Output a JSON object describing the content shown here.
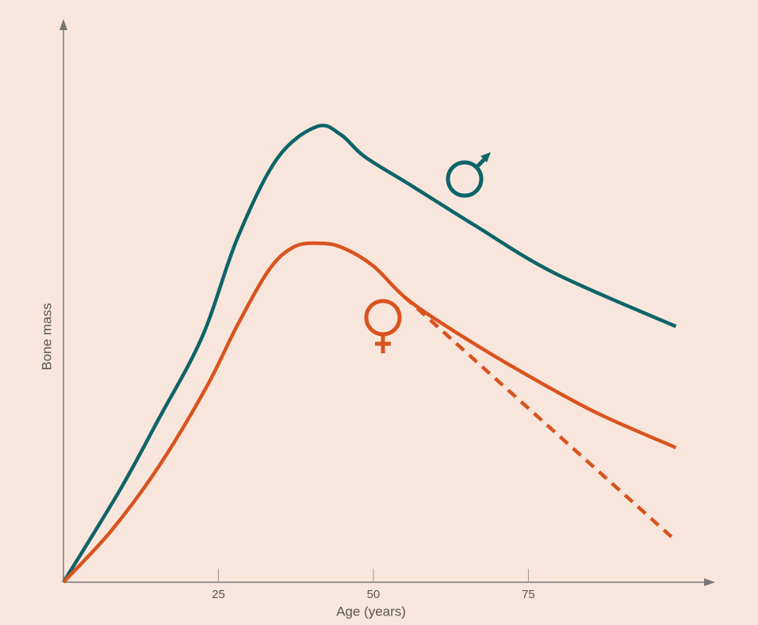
{
  "chart_data": {
    "type": "line",
    "x_label": "Age (years)",
    "y_label": "Bone mass",
    "xlim": [
      0,
      105
    ],
    "ylim": [
      0,
      100
    ],
    "xticks": [
      25,
      50,
      75
    ],
    "series": [
      {
        "color": "#0d6468",
        "linestyle": "solid",
        "x": [
          0,
          9,
          15.3,
          22.4,
          28.1,
          34.5,
          40.9,
          44.8,
          48.6,
          56.3,
          66.5,
          79.3,
          98.8
        ],
        "values": [
          0,
          16.3,
          29.1,
          44,
          61.7,
          75.9,
          81.6,
          80.1,
          76.2,
          70.9,
          63.8,
          55.3,
          45.8
        ]
      },
      {
        "color": "#d9531e",
        "linestyle": "solid",
        "x": [
          0,
          7.7,
          15.3,
          23,
          28.1,
          33.2,
          37.1,
          40.9,
          44.8,
          49.9,
          55,
          61.4,
          72.9,
          85.7,
          98.8
        ],
        "values": [
          0,
          9.2,
          20.6,
          34.8,
          46.1,
          56,
          60,
          60.7,
          60,
          56.7,
          51.1,
          46.1,
          38.3,
          30.5,
          24.1
        ]
      },
      {
        "color": "#d9531e",
        "linestyle": "dashed",
        "x": [
          55,
          98.8
        ],
        "values": [
          51.1,
          7.4
        ]
      }
    ]
  }
}
